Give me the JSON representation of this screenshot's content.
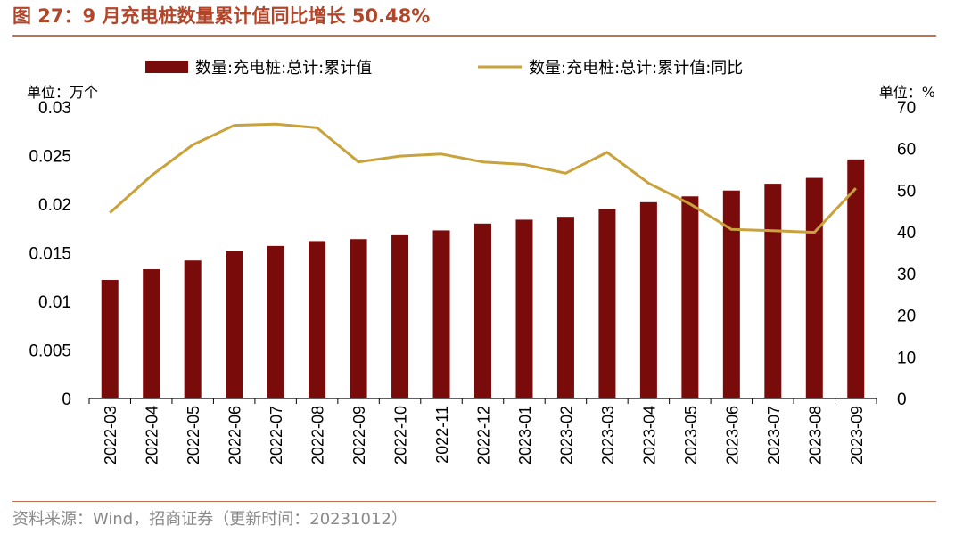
{
  "title": "图 27：9 月充电桩数量累计值同比增长 50.48%",
  "source": "资料来源：Wind，招商证券（更新时间：20231012）",
  "colors": {
    "bar": "#7a0b0b",
    "line": "#c9a23c",
    "accent": "#b2462a"
  },
  "chart_data": {
    "type": "bar+line",
    "categories": [
      "2022-03",
      "2022-04",
      "2022-05",
      "2022-06",
      "2022-07",
      "2022-08",
      "2022-09",
      "2022-10",
      "2022-11",
      "2022-12",
      "2023-01",
      "2023-02",
      "2023-03",
      "2023-04",
      "2023-05",
      "2023-06",
      "2023-07",
      "2023-08",
      "2023-09"
    ],
    "series": [
      {
        "name": "数量:充电桩:总计:累计值",
        "type": "bar",
        "axis": "left",
        "values": [
          0.0122,
          0.0133,
          0.0142,
          0.0152,
          0.0157,
          0.0162,
          0.0164,
          0.0168,
          0.0173,
          0.018,
          0.0184,
          0.0187,
          0.0195,
          0.0202,
          0.0208,
          0.0214,
          0.0221,
          0.0227,
          0.0246
        ]
      },
      {
        "name": "数量:充电桩:总计:累计值:同比",
        "type": "line",
        "axis": "right",
        "values": [
          44.6,
          53.5,
          60.9,
          65.6,
          65.9,
          65.0,
          56.8,
          58.2,
          58.7,
          56.8,
          56.2,
          54.1,
          59.1,
          51.7,
          46.7,
          40.6,
          40.3,
          39.9,
          50.48
        ]
      }
    ],
    "y_left": {
      "unit": "单位：万个",
      "range": [
        0,
        0.03
      ],
      "ticks": [
        "0",
        "0.005",
        "0.01",
        "0.015",
        "0.02",
        "0.025",
        "0.03"
      ]
    },
    "y_right": {
      "unit": "单位：%",
      "range": [
        0,
        70
      ],
      "ticks": [
        "0",
        "10",
        "20",
        "30",
        "40",
        "50",
        "60",
        "70"
      ]
    },
    "legend": "top",
    "grid": false
  }
}
